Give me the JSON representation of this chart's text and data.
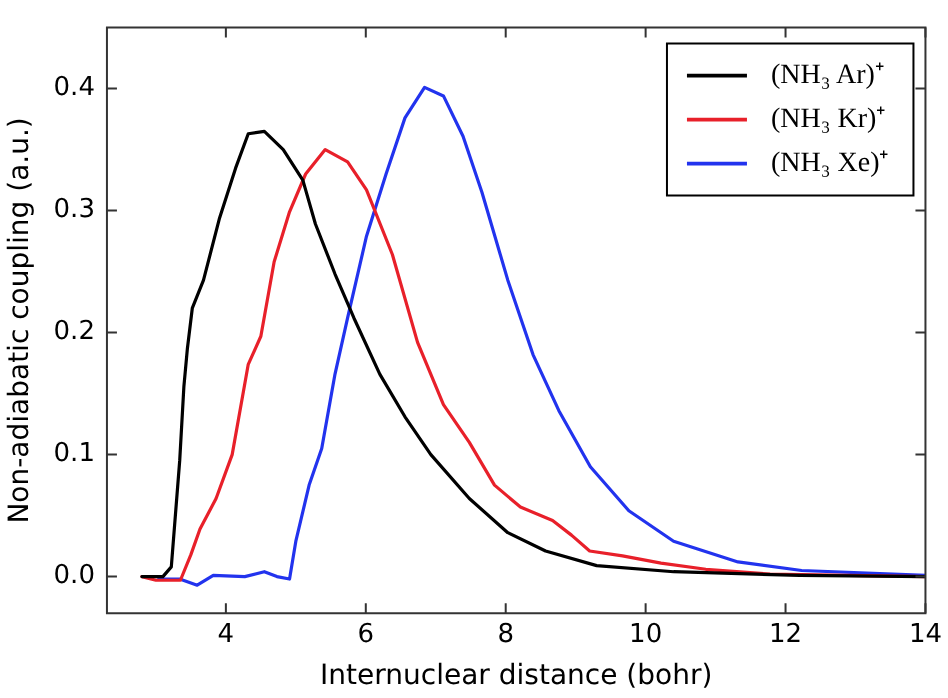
{
  "chart_data": {
    "type": "line",
    "xlabel": "Internuclear distance (bohr)",
    "ylabel": "Non-adiabatic coupling (a.u.)",
    "xlim": [
      2.3,
      14
    ],
    "xticks": [
      4,
      6,
      8,
      10,
      12,
      14
    ],
    "ylim": [
      -0.03,
      0.45
    ],
    "yticks": [
      {
        "value": 0,
        "label": "0.0"
      },
      {
        "value": 0.1,
        "label": "0.1"
      },
      {
        "value": 0.2,
        "label": "0.2"
      },
      {
        "value": 0.3,
        "label": "0.3"
      },
      {
        "value": 0.4,
        "label": "0.4"
      }
    ],
    "legend": "top right",
    "marker": "none",
    "line_style": "solid",
    "series": [
      {
        "name": "(NH₃ Ar)⁺",
        "color": "#000000",
        "x": [
          2.8,
          3.1,
          3.22,
          3.34,
          3.4,
          3.45,
          3.52,
          3.68,
          3.91,
          4.14,
          4.32,
          4.55,
          4.82,
          5.1,
          5.28,
          5.56,
          5.83,
          6.2,
          6.56,
          6.93,
          7.48,
          8.03,
          8.57,
          9.3,
          10.4,
          12.2,
          14
        ],
        "values": [
          0,
          0,
          0.008,
          0.095,
          0.156,
          0.187,
          0.22,
          0.243,
          0.294,
          0.335,
          0.363,
          0.365,
          0.35,
          0.325,
          0.289,
          0.248,
          0.212,
          0.166,
          0.131,
          0.1,
          0.064,
          0.036,
          0.021,
          0.009,
          0.004,
          0.001,
          0
        ]
      },
      {
        "name": "(NH₃ Kr)⁺",
        "color": "#e8202a",
        "x": [
          2.8,
          3.0,
          3.35,
          3.5,
          3.63,
          3.86,
          4.09,
          4.32,
          4.5,
          4.69,
          4.91,
          5.14,
          5.42,
          5.74,
          6.01,
          6.38,
          6.74,
          7.11,
          7.48,
          7.84,
          8.21,
          8.67,
          8.94,
          9.2,
          9.67,
          10.22,
          10.86,
          11.78,
          14
        ],
        "values": [
          0,
          -0.003,
          -0.003,
          0.018,
          0.039,
          0.064,
          0.1,
          0.174,
          0.197,
          0.258,
          0.299,
          0.33,
          0.35,
          0.34,
          0.317,
          0.264,
          0.192,
          0.141,
          0.11,
          0.075,
          0.057,
          0.046,
          0.034,
          0.021,
          0.017,
          0.011,
          0.006,
          0.002,
          0
        ]
      },
      {
        "name": "(NH₃ Xe)⁺",
        "color": "#2233ee",
        "x": [
          3.04,
          3.34,
          3.59,
          3.82,
          4.27,
          4.55,
          4.73,
          4.91,
          5.0,
          5.19,
          5.37,
          5.56,
          5.74,
          6.01,
          6.29,
          6.56,
          6.84,
          7.11,
          7.39,
          7.66,
          8.03,
          8.39,
          8.76,
          9.21,
          9.76,
          10.4,
          11.32,
          12.23,
          14
        ],
        "values": [
          -0.002,
          -0.002,
          -0.007,
          0.001,
          0,
          0.004,
          0,
          -0.002,
          0.029,
          0.075,
          0.105,
          0.166,
          0.212,
          0.279,
          0.33,
          0.376,
          0.401,
          0.394,
          0.361,
          0.315,
          0.243,
          0.182,
          0.136,
          0.09,
          0.054,
          0.029,
          0.012,
          0.005,
          0.001
        ]
      }
    ]
  }
}
